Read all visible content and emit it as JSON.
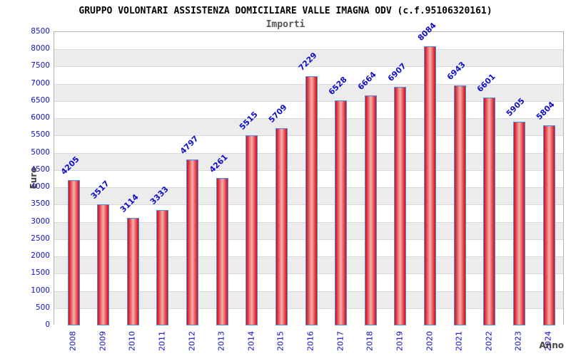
{
  "chart_data": {
    "type": "bar",
    "title": "GRUPPO VOLONTARI ASSISTENZA DOMICILIARE VALLE IMAGNA ODV (c.f.95106320161)",
    "subtitle": "Importi",
    "xlabel": "Anno",
    "ylabel": "Euro",
    "categories": [
      "2008",
      "2009",
      "2010",
      "2011",
      "2012",
      "2013",
      "2014",
      "2015",
      "2016",
      "2017",
      "2018",
      "2019",
      "2020",
      "2021",
      "2022",
      "2023",
      "2024"
    ],
    "values": [
      4205,
      3517,
      3114,
      3333,
      4797,
      4261,
      5515,
      5709,
      7229,
      6528,
      6664,
      6907,
      8084,
      6943,
      6601,
      5905,
      5804
    ],
    "ylim": [
      0,
      8500
    ],
    "ytick_step": 500,
    "grid": true,
    "legend": "none",
    "colors": {
      "label_blue": "#0f0fcc",
      "axis_title_gray": "#444444",
      "subtitle_gray": "#555555",
      "band_gray": "#ececec",
      "band_white": "#ffffff",
      "gridline": "#d9d9d9",
      "plot_border": "#b3b3b3",
      "bar_edge_red": "#c60f1e",
      "bar_mid_red": "#e85050",
      "bar_center_pink": "#f5b0b0",
      "bar_border_blue": "#4d8ee0"
    }
  }
}
